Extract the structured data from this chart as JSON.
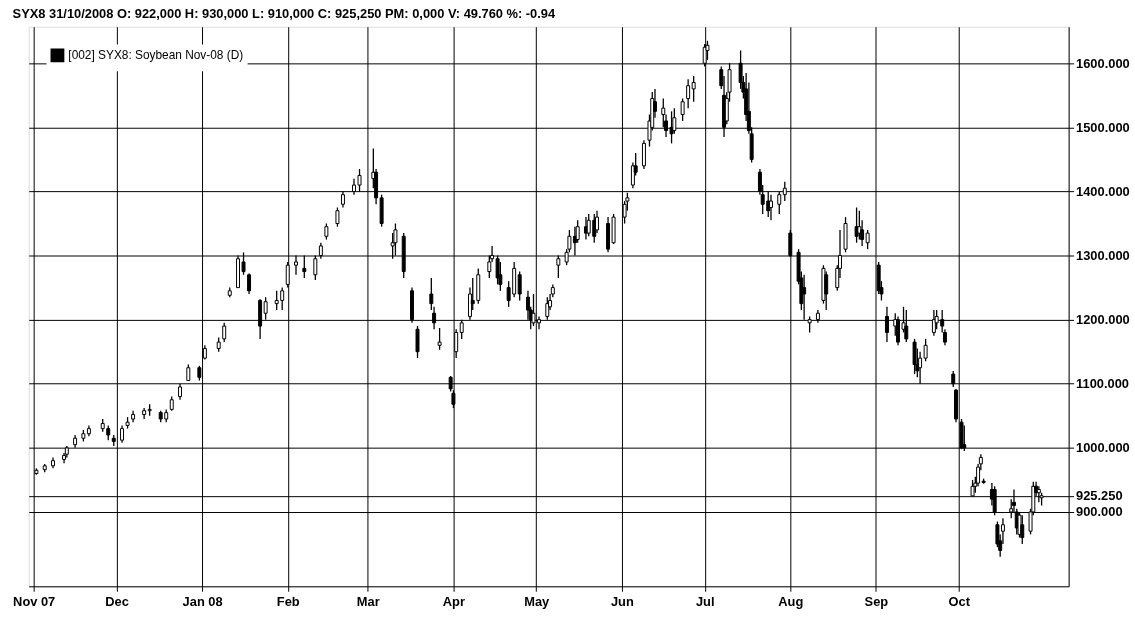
{
  "chart_data": {
    "type": "candlestick",
    "title": "SYX8   31/10/2008   O: 922,000   H: 930,000   L: 910,000   C: 925,250   PM: 0,000   V: 49.760   %: -0.94",
    "x": [
      "2007-11-02",
      "2007-11-05",
      "2007-11-08",
      "2007-11-12",
      "2007-11-13",
      "2007-11-16",
      "2007-11-19",
      "2007-11-21",
      "2007-11-26",
      "2007-11-28",
      "2007-11-30",
      "2007-12-03",
      "2007-12-05",
      "2007-12-07",
      "2007-12-11",
      "2007-12-13",
      "2007-12-17",
      "2007-12-19",
      "2007-12-21",
      "2007-12-24",
      "2007-12-27",
      "2007-12-31",
      "2008-01-02",
      "2008-01-07",
      "2008-01-09",
      "2008-01-11",
      "2008-01-14",
      "2008-01-16",
      "2008-01-18",
      "2008-01-22",
      "2008-01-24",
      "2008-01-28",
      "2008-01-30",
      "2008-02-01",
      "2008-02-04",
      "2008-02-07",
      "2008-02-11",
      "2008-02-13",
      "2008-02-15",
      "2008-02-19",
      "2008-02-21",
      "2008-02-25",
      "2008-02-27",
      "2008-03-03",
      "2008-03-04",
      "2008-03-06",
      "2008-03-10",
      "2008-03-11",
      "2008-03-14",
      "2008-03-17",
      "2008-03-19",
      "2008-03-24",
      "2008-03-25",
      "2008-03-27",
      "2008-03-31",
      "2008-04-01",
      "2008-04-02",
      "2008-04-04",
      "2008-04-07",
      "2008-04-08",
      "2008-04-10",
      "2008-04-14",
      "2008-04-15",
      "2008-04-17",
      "2008-04-18",
      "2008-04-21",
      "2008-04-23",
      "2008-04-25",
      "2008-04-28",
      "2008-04-29",
      "2008-04-30",
      "2008-05-02",
      "2008-05-05",
      "2008-05-06",
      "2008-05-07",
      "2008-05-09",
      "2008-05-12",
      "2008-05-13",
      "2008-05-15",
      "2008-05-16",
      "2008-05-19",
      "2008-05-20",
      "2008-05-22",
      "2008-05-23",
      "2008-05-27",
      "2008-05-29",
      "2008-06-02",
      "2008-06-03",
      "2008-06-05",
      "2008-06-06",
      "2008-06-09",
      "2008-06-11",
      "2008-06-12",
      "2008-06-13",
      "2008-06-16",
      "2008-06-17",
      "2008-06-19",
      "2008-06-20",
      "2008-06-23",
      "2008-06-25",
      "2008-06-27",
      "2008-07-01",
      "2008-07-02",
      "2008-07-07",
      "2008-07-08",
      "2008-07-09",
      "2008-07-10",
      "2008-07-14",
      "2008-07-15",
      "2008-07-16",
      "2008-07-17",
      "2008-07-18",
      "2008-07-21",
      "2008-07-22",
      "2008-07-24",
      "2008-07-25",
      "2008-07-28",
      "2008-07-30",
      "2008-08-01",
      "2008-08-04",
      "2008-08-05",
      "2008-08-06",
      "2008-08-08",
      "2008-08-11",
      "2008-08-13",
      "2008-08-14",
      "2008-08-18",
      "2008-08-19",
      "2008-08-21",
      "2008-08-25",
      "2008-08-26",
      "2008-08-27",
      "2008-08-29",
      "2008-09-02",
      "2008-09-03",
      "2008-09-05",
      "2008-09-08",
      "2008-09-09",
      "2008-09-11",
      "2008-09-12",
      "2008-09-15",
      "2008-09-16",
      "2008-09-17",
      "2008-09-19",
      "2008-09-22",
      "2008-09-23",
      "2008-09-25",
      "2008-09-26",
      "2008-09-29",
      "2008-09-30",
      "2008-10-02",
      "2008-10-03",
      "2008-10-06",
      "2008-10-07",
      "2008-10-08",
      "2008-10-09",
      "2008-10-10",
      "2008-10-13",
      "2008-10-14",
      "2008-10-15",
      "2008-10-16",
      "2008-10-17",
      "2008-10-20",
      "2008-10-21",
      "2008-10-22",
      "2008-10-23",
      "2008-10-24",
      "2008-10-27",
      "2008-10-28",
      "2008-10-29",
      "2008-10-30",
      "2008-10-31"
    ],
    "series": [
      {
        "name": "[002] SYX8: Soybean Nov-08 (D)",
        "color": "#000000",
        "ohlc": [
          [
            960,
            968,
            958,
            965
          ],
          [
            966,
            975,
            962,
            972
          ],
          [
            972,
            985,
            968,
            980
          ],
          [
            982,
            992,
            976,
            988
          ],
          [
            990,
            1003,
            985,
            1000
          ],
          [
            1005,
            1020,
            1000,
            1015
          ],
          [
            1015,
            1028,
            1010,
            1022
          ],
          [
            1022,
            1035,
            1018,
            1030
          ],
          [
            1030,
            1045,
            1025,
            1038
          ],
          [
            1030,
            1035,
            1012,
            1020
          ],
          [
            1015,
            1020,
            1003,
            1010
          ],
          [
            1012,
            1035,
            1008,
            1030
          ],
          [
            1035,
            1048,
            1030,
            1040
          ],
          [
            1045,
            1058,
            1040,
            1052
          ],
          [
            1052,
            1062,
            1045,
            1058
          ],
          [
            1058,
            1068,
            1050,
            1060
          ],
          [
            1055,
            1058,
            1040,
            1045
          ],
          [
            1045,
            1060,
            1040,
            1055
          ],
          [
            1060,
            1080,
            1058,
            1075
          ],
          [
            1080,
            1100,
            1075,
            1095
          ],
          [
            1105,
            1130,
            1105,
            1125
          ],
          [
            1125,
            1128,
            1105,
            1110
          ],
          [
            1140,
            1160,
            1138,
            1155
          ],
          [
            1155,
            1172,
            1150,
            1165
          ],
          [
            1170,
            1195,
            1165,
            1190
          ],
          [
            1238,
            1250,
            1235,
            1245
          ],
          [
            1250,
            1300,
            1250,
            1295
          ],
          [
            1290,
            1305,
            1270,
            1275
          ],
          [
            1270,
            1272,
            1240,
            1245
          ],
          [
            1230,
            1232,
            1170,
            1190
          ],
          [
            1210,
            1235,
            1200,
            1228
          ],
          [
            1225,
            1245,
            1215,
            1230
          ],
          [
            1230,
            1250,
            1215,
            1245
          ],
          [
            1255,
            1290,
            1250,
            1285
          ],
          [
            1285,
            1300,
            1270,
            1290
          ],
          [
            1280,
            1300,
            1265,
            1275
          ],
          [
            1270,
            1300,
            1262,
            1295
          ],
          [
            1300,
            1320,
            1295,
            1315
          ],
          [
            1330,
            1350,
            1325,
            1345
          ],
          [
            1350,
            1375,
            1345,
            1370
          ],
          [
            1380,
            1400,
            1375,
            1395
          ],
          [
            1400,
            1420,
            1395,
            1410
          ],
          [
            1410,
            1435,
            1400,
            1425
          ],
          [
            1420,
            1467,
            1405,
            1430
          ],
          [
            1430,
            1435,
            1380,
            1390
          ],
          [
            1390,
            1395,
            1345,
            1350
          ],
          [
            1315,
            1335,
            1295,
            1320
          ],
          [
            1320,
            1350,
            1300,
            1340
          ],
          [
            1330,
            1335,
            1265,
            1275
          ],
          [
            1245,
            1250,
            1195,
            1200
          ],
          [
            1185,
            1190,
            1140,
            1150
          ],
          [
            1240,
            1265,
            1215,
            1225
          ],
          [
            1210,
            1220,
            1185,
            1195
          ],
          [
            1160,
            1187,
            1153,
            1165
          ],
          [
            1110,
            1112,
            1088,
            1092
          ],
          [
            1085,
            1090,
            1062,
            1068
          ],
          [
            1150,
            1185,
            1140,
            1180
          ],
          [
            1180,
            1200,
            1170,
            1195
          ],
          [
            1205,
            1250,
            1200,
            1240
          ],
          [
            1230,
            1265,
            1215,
            1225
          ],
          [
            1230,
            1280,
            1225,
            1270
          ],
          [
            1275,
            1300,
            1265,
            1290
          ],
          [
            1295,
            1315,
            1290,
            1300
          ],
          [
            1295,
            1300,
            1255,
            1265
          ],
          [
            1270,
            1290,
            1245,
            1255
          ],
          [
            1250,
            1260,
            1220,
            1230
          ],
          [
            1240,
            1290,
            1235,
            1280
          ],
          [
            1270,
            1275,
            1230,
            1240
          ],
          [
            1235,
            1245,
            1200,
            1215
          ],
          [
            1215,
            1220,
            1185,
            1200
          ],
          [
            1195,
            1240,
            1190,
            1210
          ],
          [
            1195,
            1205,
            1185,
            1200
          ],
          [
            1205,
            1235,
            1200,
            1225
          ],
          [
            1220,
            1240,
            1215,
            1230
          ],
          [
            1240,
            1255,
            1235,
            1250
          ],
          [
            1285,
            1300,
            1265,
            1295
          ],
          [
            1290,
            1310,
            1285,
            1305
          ],
          [
            1310,
            1340,
            1305,
            1330
          ],
          [
            1330,
            1345,
            1300,
            1320
          ],
          [
            1325,
            1355,
            1320,
            1345
          ],
          [
            1345,
            1360,
            1325,
            1335
          ],
          [
            1335,
            1365,
            1330,
            1355
          ],
          [
            1355,
            1365,
            1320,
            1330
          ],
          [
            1340,
            1370,
            1335,
            1360
          ],
          [
            1350,
            1360,
            1305,
            1310
          ],
          [
            1320,
            1365,
            1318,
            1360
          ],
          [
            1360,
            1385,
            1350,
            1380
          ],
          [
            1385,
            1398,
            1370,
            1390
          ],
          [
            1410,
            1445,
            1405,
            1440
          ],
          [
            1440,
            1460,
            1425,
            1430
          ],
          [
            1440,
            1480,
            1435,
            1475
          ],
          [
            1480,
            1520,
            1470,
            1510
          ],
          [
            1500,
            1555,
            1495,
            1545
          ],
          [
            1540,
            1560,
            1515,
            1525
          ],
          [
            1520,
            1545,
            1500,
            1530
          ],
          [
            1510,
            1520,
            1485,
            1495
          ],
          [
            1500,
            1525,
            1475,
            1490
          ],
          [
            1495,
            1530,
            1490,
            1515
          ],
          [
            1520,
            1545,
            1510,
            1540
          ],
          [
            1545,
            1575,
            1530,
            1565
          ],
          [
            1560,
            1580,
            1540,
            1570
          ],
          [
            1600,
            1630,
            1595,
            1625
          ],
          [
            1620,
            1635,
            1605,
            1628
          ],
          [
            1590,
            1595,
            1560,
            1565
          ],
          [
            1550,
            1580,
            1485,
            1500
          ],
          [
            1510,
            1555,
            1505,
            1545
          ],
          [
            1555,
            1600,
            1540,
            1590
          ],
          [
            1600,
            1620,
            1560,
            1570
          ],
          [
            1570,
            1580,
            1545,
            1555
          ],
          [
            1560,
            1585,
            1510,
            1520
          ],
          [
            1525,
            1570,
            1490,
            1495
          ],
          [
            1490,
            1500,
            1445,
            1450
          ],
          [
            1430,
            1435,
            1395,
            1400
          ],
          [
            1395,
            1410,
            1365,
            1380
          ],
          [
            1385,
            1400,
            1360,
            1370
          ],
          [
            1375,
            1395,
            1355,
            1385
          ],
          [
            1380,
            1400,
            1365,
            1395
          ],
          [
            1395,
            1415,
            1385,
            1405
          ],
          [
            1335,
            1340,
            1298,
            1300
          ],
          [
            1305,
            1310,
            1255,
            1260
          ],
          [
            1265,
            1275,
            1215,
            1225
          ],
          [
            1250,
            1270,
            1200,
            1240
          ],
          [
            1195,
            1205,
            1180,
            1200
          ],
          [
            1200,
            1215,
            1195,
            1210
          ],
          [
            1230,
            1285,
            1225,
            1280
          ],
          [
            1270,
            1275,
            1215,
            1240
          ],
          [
            1250,
            1285,
            1245,
            1280
          ],
          [
            1280,
            1340,
            1265,
            1300
          ],
          [
            1310,
            1360,
            1305,
            1350
          ],
          [
            1345,
            1375,
            1320,
            1330
          ],
          [
            1335,
            1370,
            1325,
            1345
          ],
          [
            1340,
            1355,
            1315,
            1325
          ],
          [
            1320,
            1340,
            1310,
            1335
          ],
          [
            1285,
            1290,
            1240,
            1245
          ],
          [
            1250,
            1260,
            1230,
            1240
          ],
          [
            1205,
            1220,
            1165,
            1180
          ],
          [
            1190,
            1210,
            1175,
            1200
          ],
          [
            1200,
            1205,
            1160,
            1165
          ],
          [
            1185,
            1220,
            1180,
            1195
          ],
          [
            1190,
            1215,
            1165,
            1170
          ],
          [
            1165,
            1170,
            1115,
            1130
          ],
          [
            1130,
            1155,
            1110,
            1120
          ],
          [
            1125,
            1150,
            1100,
            1140
          ],
          [
            1140,
            1170,
            1135,
            1160
          ],
          [
            1180,
            1215,
            1175,
            1200
          ],
          [
            1195,
            1215,
            1185,
            1205
          ],
          [
            1200,
            1215,
            1180,
            1190
          ],
          [
            1180,
            1185,
            1160,
            1165
          ],
          [
            1115,
            1120,
            1095,
            1100
          ],
          [
            1090,
            1092,
            1040,
            1045
          ],
          [
            1040,
            1045,
            998,
            1000
          ],
          [
            1005,
            1035,
            995,
            1000
          ],
          [
            925,
            950,
            925,
            940
          ],
          [
            940,
            955,
            930,
            945
          ],
          [
            945,
            975,
            940,
            970
          ],
          [
            975,
            990,
            965,
            985
          ],
          [
            948,
            952,
            944,
            946
          ],
          [
            935,
            945,
            910,
            920
          ],
          [
            935,
            940,
            895,
            900
          ],
          [
            880,
            885,
            845,
            850
          ],
          [
            855,
            865,
            830,
            840
          ],
          [
            870,
            890,
            850,
            880
          ],
          [
            900,
            920,
            890,
            905
          ],
          [
            915,
            935,
            900,
            910
          ],
          [
            900,
            905,
            865,
            875
          ],
          [
            865,
            900,
            860,
            895
          ],
          [
            880,
            895,
            850,
            860
          ],
          [
            870,
            905,
            865,
            900
          ],
          [
            900,
            947,
            895,
            940
          ],
          [
            940,
            947,
            925,
            930
          ],
          [
            930,
            940,
            915,
            935
          ],
          [
            922,
            930,
            910,
            925.25
          ]
        ]
      }
    ],
    "xlim": [
      "2007-11-01",
      "2008-11-08"
    ],
    "xticks": [
      {
        "value": "2007-11-01",
        "label": "Nov 07"
      },
      {
        "value": "2007-12-01",
        "label": "Dec"
      },
      {
        "value": "2008-01-01",
        "label": "Jan 08"
      },
      {
        "value": "2008-02-01",
        "label": "Feb"
      },
      {
        "value": "2008-03-01",
        "label": "Mar"
      },
      {
        "value": "2008-04-01",
        "label": "Apr"
      },
      {
        "value": "2008-05-01",
        "label": "May"
      },
      {
        "value": "2008-06-01",
        "label": "Jun"
      },
      {
        "value": "2008-07-01",
        "label": "Jul"
      },
      {
        "value": "2008-08-01",
        "label": "Aug"
      },
      {
        "value": "2008-09-01",
        "label": "Sep"
      },
      {
        "value": "2008-10-01",
        "label": "Oct"
      }
    ],
    "ylim": [
      784,
      1657
    ],
    "yticks": [
      {
        "value": 900,
        "label": "900.000"
      },
      {
        "value": 925.25,
        "label": "925.250"
      },
      {
        "value": 1000,
        "label": "1000.000"
      },
      {
        "value": 1100,
        "label": "1100.000"
      },
      {
        "value": 1200,
        "label": "1200.000"
      },
      {
        "value": 1300,
        "label": "1300.000"
      },
      {
        "value": 1400,
        "label": "1400.000"
      },
      {
        "value": 1500,
        "label": "1500.000"
      },
      {
        "value": 1600,
        "label": "1600.000"
      }
    ],
    "grid": true,
    "legend": "top left"
  }
}
